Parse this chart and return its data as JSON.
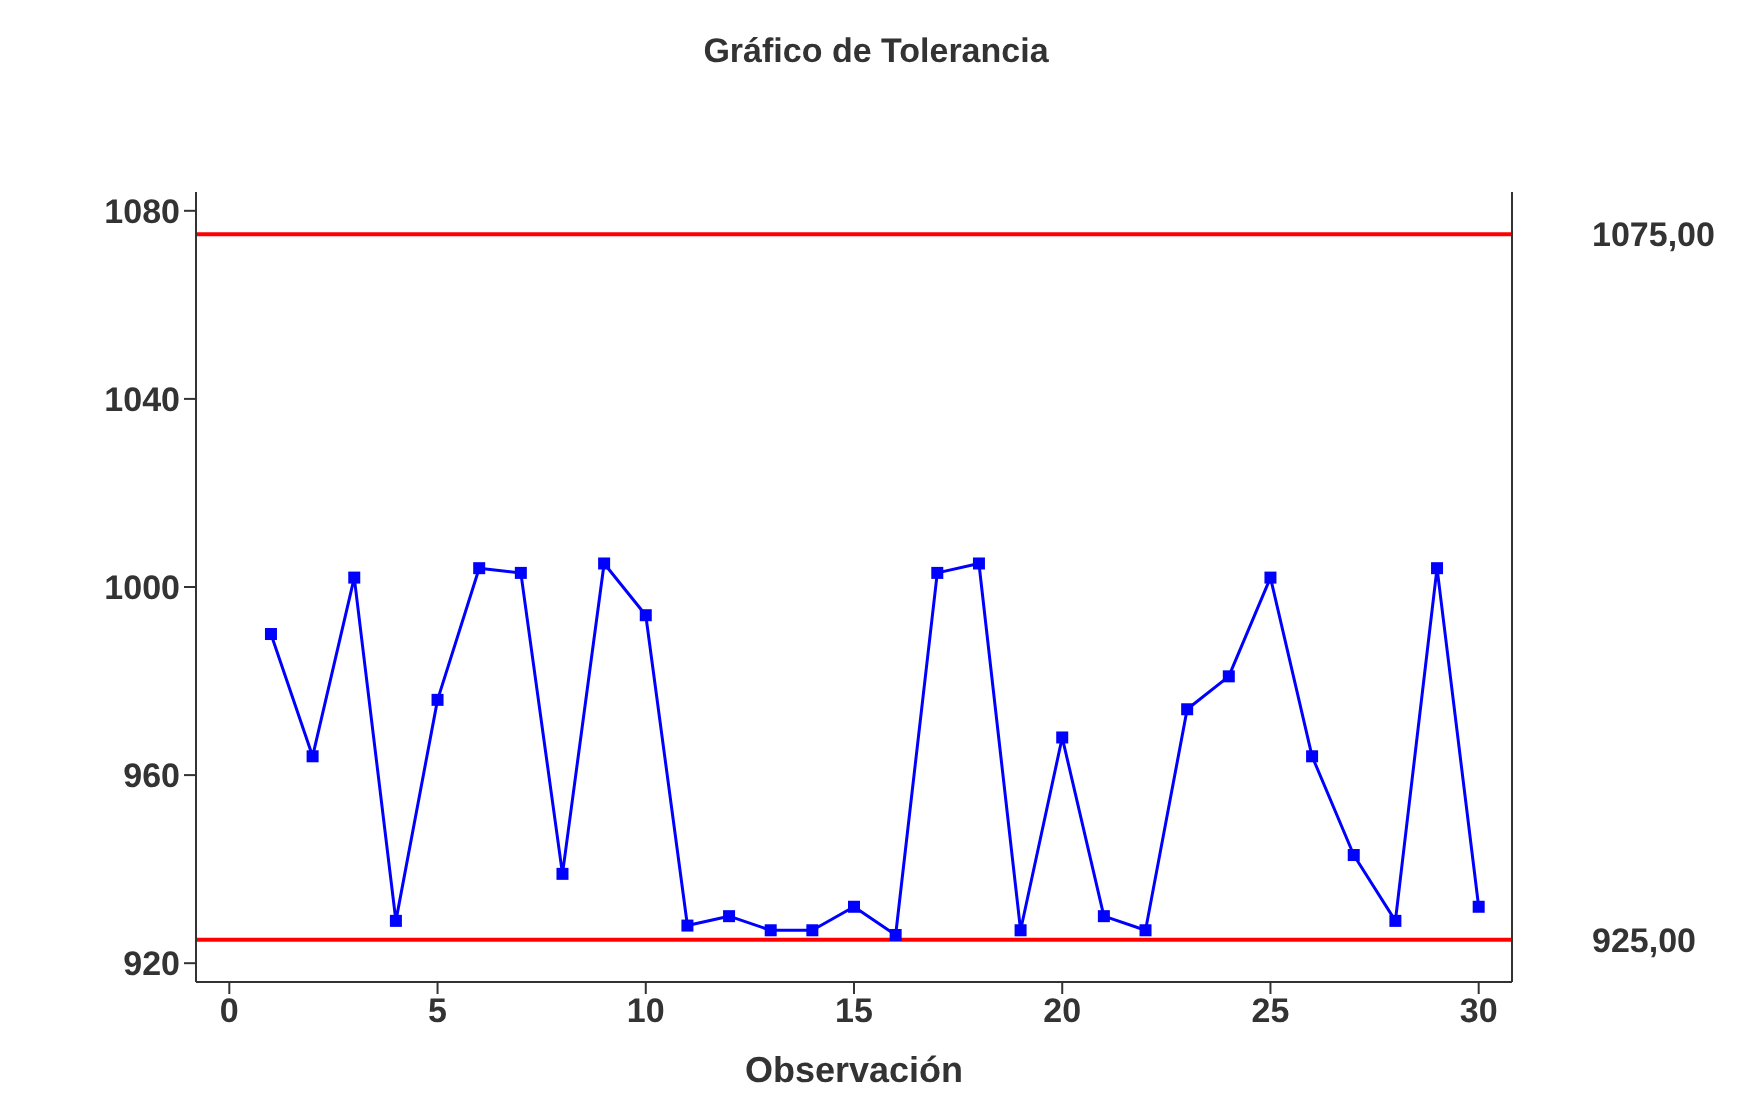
{
  "chart_data": {
    "type": "line",
    "title": "Gráfico de Tolerancia",
    "xlabel": "Observación",
    "x": [
      1,
      2,
      3,
      4,
      5,
      6,
      7,
      8,
      9,
      10,
      11,
      12,
      13,
      14,
      15,
      16,
      17,
      18,
      19,
      20,
      21,
      22,
      23,
      24,
      25,
      26,
      27,
      28,
      29,
      30
    ],
    "series": [
      {
        "color": "#0000ff",
        "values": [
          990,
          964,
          1002,
          929,
          976,
          1004,
          1003,
          939,
          1005,
          994,
          928,
          930,
          927,
          927,
          932,
          926,
          1003,
          1005,
          927,
          968,
          930,
          927,
          974,
          981,
          1002,
          964,
          943,
          929,
          1004,
          932
        ]
      }
    ],
    "xlim": [
      -0.8,
      30.8
    ],
    "xticks": [
      0,
      5,
      10,
      15,
      20,
      25,
      30
    ],
    "ylim": [
      916,
      1084
    ],
    "yticks": [
      920,
      960,
      1000,
      1040,
      1080
    ],
    "ref_lines": [
      {
        "axis": "y",
        "value": 1075,
        "label": "1075,00",
        "color": "#ff0000"
      },
      {
        "axis": "y",
        "value": 925,
        "label": "925,00",
        "color": "#ff0000"
      }
    ],
    "marker": "square",
    "grid": false,
    "legend": false
  }
}
